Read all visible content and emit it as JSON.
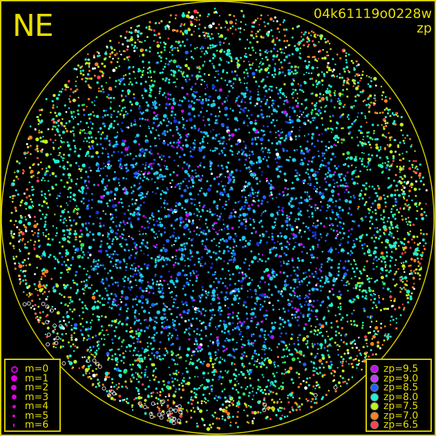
{
  "header": {
    "direction": "NE",
    "observation_id": "04k61119o0228w",
    "color_key": "zp"
  },
  "chart_data": {
    "type": "scatter",
    "title": "",
    "description_colors": {
      "horizon_circle": "#e0e000",
      "background": "#000000",
      "saturated": "#ffffff"
    },
    "legend_magnitude": {
      "placement": "bottom-left",
      "items": [
        {
          "label": "m=0",
          "hollow": true
        },
        {
          "label": "m=1"
        },
        {
          "label": "m=2"
        },
        {
          "label": "m=3"
        },
        {
          "label": "m=4"
        },
        {
          "label": "m=5"
        },
        {
          "label": "m=6"
        }
      ],
      "color": "#e000e0"
    },
    "legend_zp": {
      "placement": "bottom-right",
      "items": [
        {
          "label": "zp=9.5",
          "color": "#c010f0"
        },
        {
          "label": "zp=9.0",
          "color": "#c040f0"
        },
        {
          "label": "zp=8.5",
          "color": "#2060ff"
        },
        {
          "label": "zp=8.0",
          "color": "#20f0d0"
        },
        {
          "label": "zp=7.5",
          "color": "#c0f020"
        },
        {
          "label": "zp=7.0",
          "color": "#ff8020"
        },
        {
          "label": "zp=6.5",
          "color": "#ff4050"
        }
      ]
    }
  }
}
